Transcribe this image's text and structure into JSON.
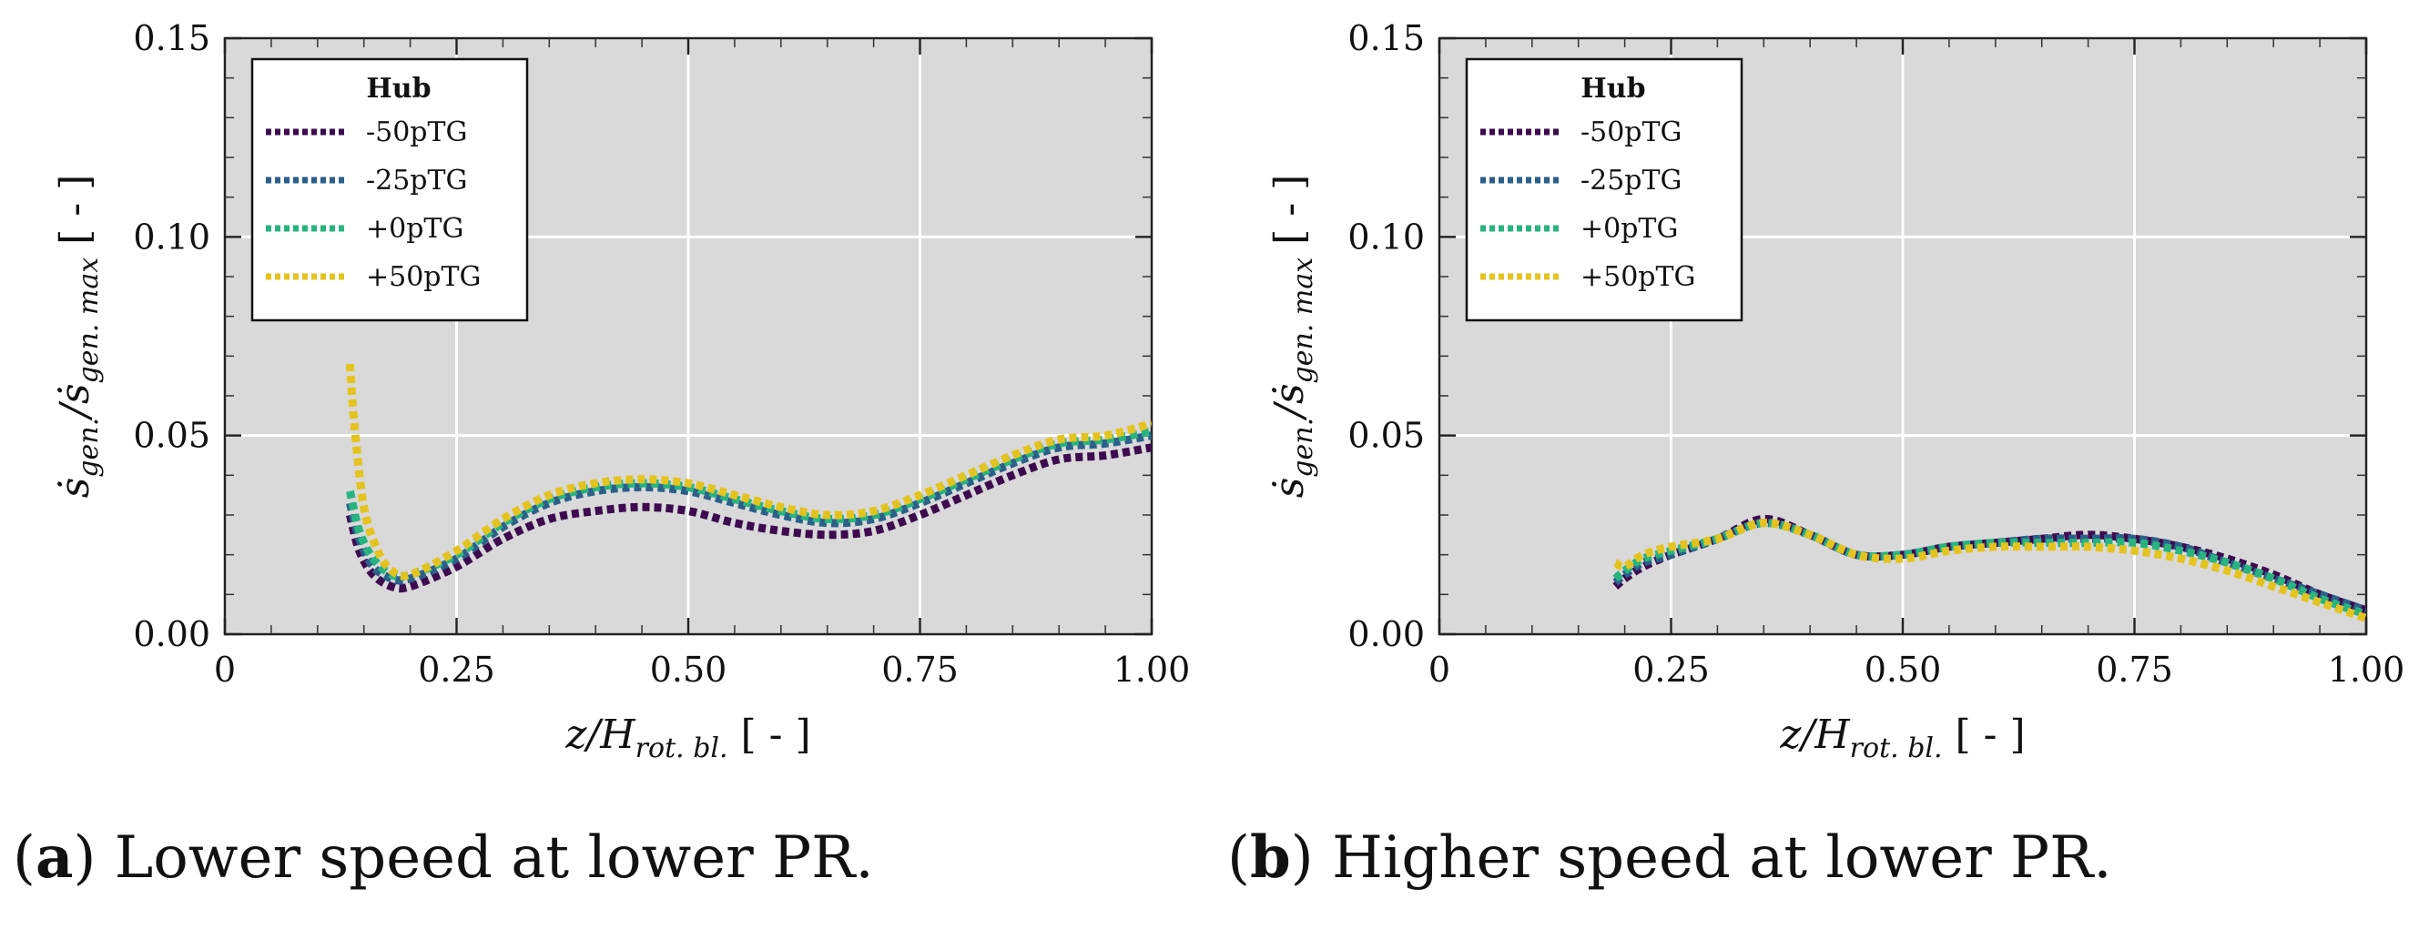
{
  "chart_data": [
    {
      "type": "line",
      "panel": "a",
      "caption_letter": "a",
      "caption_text": "Lower speed at lower PR.",
      "xlabel": "z/H_rot. bl. [ - ]",
      "ylabel": "ṡ_gen./ṡ_gen. max [ - ]",
      "xlim": [
        0,
        1.0
      ],
      "ylim": [
        0,
        0.15
      ],
      "xticks": [
        "0",
        "0.25",
        "0.50",
        "0.75",
        "1.00"
      ],
      "yticks": [
        "0.00",
        "0.05",
        "0.10",
        "0.15"
      ],
      "grid": true,
      "legend_title": "Hub",
      "legend_position": "top-left",
      "series": [
        {
          "name": "-50pTG",
          "color": "#3d0a4f",
          "x": [
            0.135,
            0.145,
            0.16,
            0.18,
            0.2,
            0.25,
            0.3,
            0.35,
            0.4,
            0.45,
            0.5,
            0.55,
            0.6,
            0.65,
            0.7,
            0.75,
            0.8,
            0.85,
            0.9,
            0.95,
            1.0
          ],
          "y": [
            0.03,
            0.021,
            0.015,
            0.012,
            0.012,
            0.017,
            0.024,
            0.029,
            0.031,
            0.032,
            0.031,
            0.028,
            0.026,
            0.025,
            0.026,
            0.03,
            0.035,
            0.04,
            0.044,
            0.045,
            0.047
          ]
        },
        {
          "name": "-25pTG",
          "color": "#2c5f8a",
          "x": [
            0.135,
            0.145,
            0.16,
            0.18,
            0.2,
            0.25,
            0.3,
            0.35,
            0.4,
            0.45,
            0.5,
            0.55,
            0.6,
            0.65,
            0.7,
            0.75,
            0.8,
            0.85,
            0.9,
            0.95,
            1.0
          ],
          "y": [
            0.033,
            0.024,
            0.017,
            0.014,
            0.014,
            0.019,
            0.027,
            0.033,
            0.036,
            0.037,
            0.036,
            0.033,
            0.03,
            0.028,
            0.029,
            0.033,
            0.038,
            0.043,
            0.047,
            0.048,
            0.05
          ]
        },
        {
          "name": "+0pTG",
          "color": "#27b480",
          "x": [
            0.135,
            0.145,
            0.16,
            0.18,
            0.2,
            0.25,
            0.3,
            0.35,
            0.4,
            0.45,
            0.5,
            0.55,
            0.6,
            0.65,
            0.7,
            0.75,
            0.8,
            0.85,
            0.9,
            0.95,
            1.0
          ],
          "y": [
            0.036,
            0.026,
            0.019,
            0.015,
            0.015,
            0.02,
            0.028,
            0.034,
            0.037,
            0.038,
            0.037,
            0.034,
            0.031,
            0.029,
            0.03,
            0.034,
            0.039,
            0.044,
            0.048,
            0.049,
            0.051
          ]
        },
        {
          "name": "+50pTG",
          "color": "#e5c31e",
          "x": [
            0.135,
            0.14,
            0.15,
            0.165,
            0.18,
            0.2,
            0.25,
            0.3,
            0.35,
            0.4,
            0.45,
            0.5,
            0.55,
            0.6,
            0.65,
            0.7,
            0.75,
            0.8,
            0.85,
            0.9,
            0.95,
            1.0
          ],
          "y": [
            0.068,
            0.052,
            0.032,
            0.021,
            0.016,
            0.015,
            0.021,
            0.029,
            0.035,
            0.038,
            0.039,
            0.038,
            0.035,
            0.032,
            0.03,
            0.031,
            0.035,
            0.04,
            0.045,
            0.049,
            0.05,
            0.053
          ]
        }
      ]
    },
    {
      "type": "line",
      "panel": "b",
      "caption_letter": "b",
      "caption_text": "Higher speed at lower PR.",
      "xlabel": "z/H_rot. bl. [ - ]",
      "ylabel": "ṡ_gen./ṡ_gen. max [ - ]",
      "xlim": [
        0,
        1.0
      ],
      "ylim": [
        0,
        0.15
      ],
      "xticks": [
        "0",
        "0.25",
        "0.50",
        "0.75",
        "1.00"
      ],
      "yticks": [
        "0.00",
        "0.05",
        "0.10",
        "0.15"
      ],
      "grid": true,
      "legend_title": "Hub",
      "legend_position": "top-left",
      "series": [
        {
          "name": "-50pTG",
          "color": "#3d0a4f",
          "x": [
            0.19,
            0.2,
            0.22,
            0.25,
            0.3,
            0.35,
            0.4,
            0.45,
            0.5,
            0.55,
            0.6,
            0.65,
            0.7,
            0.75,
            0.8,
            0.85,
            0.9,
            0.95,
            1.0
          ],
          "y": [
            0.012,
            0.014,
            0.017,
            0.02,
            0.024,
            0.029,
            0.025,
            0.02,
            0.02,
            0.022,
            0.023,
            0.024,
            0.025,
            0.024,
            0.022,
            0.019,
            0.015,
            0.01,
            0.006
          ]
        },
        {
          "name": "-25pTG",
          "color": "#2c5f8a",
          "x": [
            0.19,
            0.2,
            0.22,
            0.25,
            0.3,
            0.35,
            0.4,
            0.45,
            0.5,
            0.55,
            0.6,
            0.65,
            0.7,
            0.75,
            0.8,
            0.85,
            0.9,
            0.95,
            1.0
          ],
          "y": [
            0.013,
            0.015,
            0.018,
            0.02,
            0.024,
            0.028,
            0.025,
            0.02,
            0.02,
            0.022,
            0.023,
            0.024,
            0.024,
            0.024,
            0.022,
            0.018,
            0.014,
            0.01,
            0.006
          ]
        },
        {
          "name": "+0pTG",
          "color": "#27b480",
          "x": [
            0.19,
            0.2,
            0.22,
            0.25,
            0.3,
            0.35,
            0.4,
            0.45,
            0.5,
            0.55,
            0.6,
            0.65,
            0.7,
            0.75,
            0.8,
            0.85,
            0.9,
            0.95,
            1.0
          ],
          "y": [
            0.014,
            0.016,
            0.019,
            0.021,
            0.024,
            0.028,
            0.025,
            0.02,
            0.02,
            0.022,
            0.023,
            0.023,
            0.023,
            0.023,
            0.021,
            0.018,
            0.014,
            0.009,
            0.005
          ]
        },
        {
          "name": "+50pTG",
          "color": "#e5c31e",
          "x": [
            0.19,
            0.2,
            0.22,
            0.25,
            0.3,
            0.35,
            0.4,
            0.45,
            0.5,
            0.55,
            0.6,
            0.65,
            0.7,
            0.75,
            0.8,
            0.85,
            0.9,
            0.95,
            1.0
          ],
          "y": [
            0.018,
            0.017,
            0.02,
            0.022,
            0.024,
            0.028,
            0.025,
            0.02,
            0.019,
            0.021,
            0.022,
            0.022,
            0.022,
            0.021,
            0.019,
            0.016,
            0.012,
            0.008,
            0.004
          ]
        }
      ]
    }
  ]
}
